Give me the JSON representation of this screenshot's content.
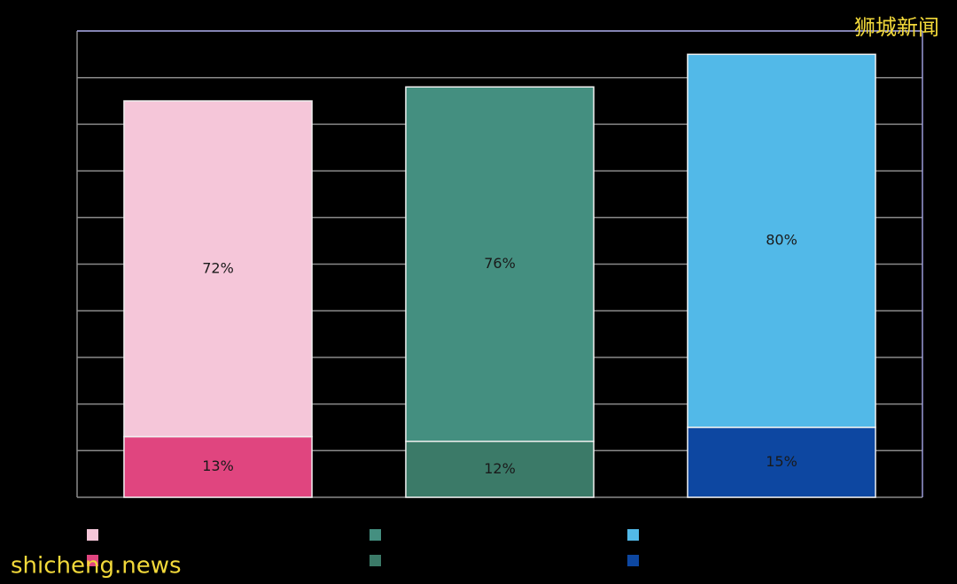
{
  "chart_data": {
    "type": "stacked-bar",
    "categories": [
      null,
      null,
      null
    ],
    "series": [
      {
        "colors": [
          "#e0457f",
          "#3b7a68",
          "#0d47a1"
        ],
        "values": [
          13,
          12,
          15
        ],
        "value_labels": [
          "13%",
          "12%",
          "15%"
        ]
      },
      {
        "colors": [
          "#f5c6d9",
          "#448f80",
          "#52b9e8"
        ],
        "values": [
          72,
          76,
          80
        ],
        "value_labels": [
          "72%",
          "76%",
          "80%"
        ]
      }
    ],
    "ylim": [
      0,
      100
    ],
    "yticks": [
      0,
      10,
      20,
      30,
      40,
      50,
      60,
      70,
      80,
      90,
      100
    ],
    "grid": true,
    "watermarks": [
      "狮城新闻",
      "shicheng.news"
    ]
  }
}
